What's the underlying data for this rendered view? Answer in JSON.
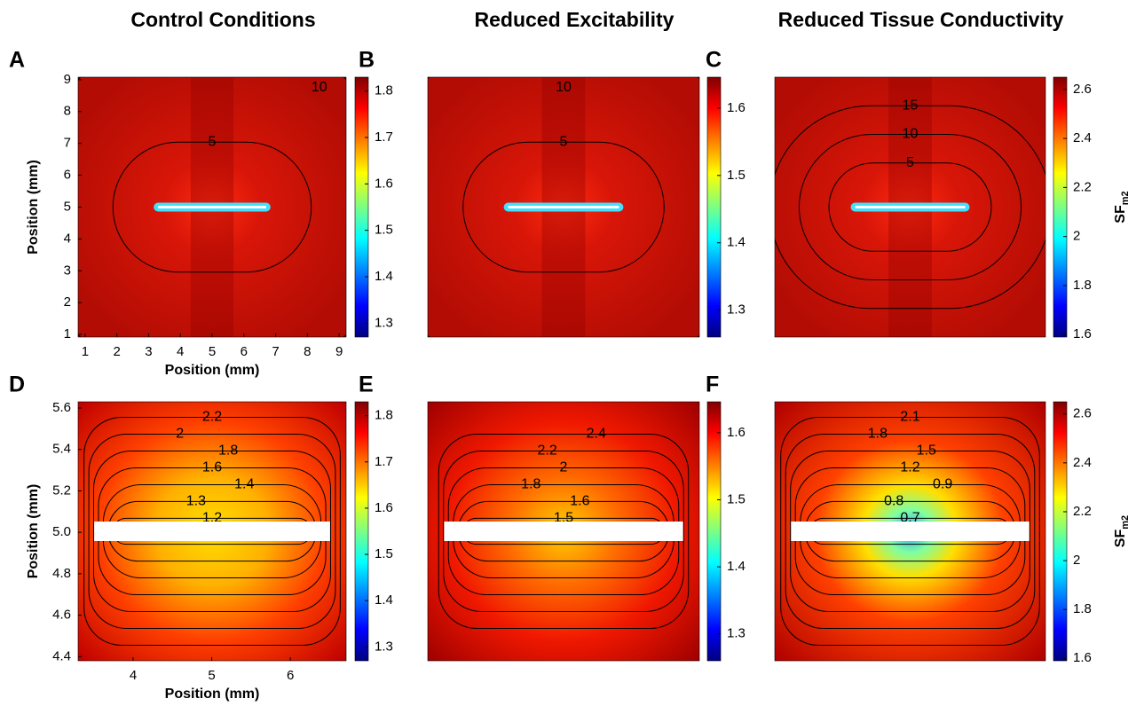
{
  "chart_data": [
    {
      "type": "contour",
      "panel_label": "A",
      "title": "Control Conditions",
      "xlabel": "Position (mm)",
      "ylabel": "Position (mm)",
      "xlim": [
        0.78,
        9.22
      ],
      "ylim": [
        0.92,
        9.08
      ],
      "xticks": [
        1,
        2,
        3,
        4,
        5,
        6,
        7,
        8,
        9
      ],
      "yticks": [
        1,
        2,
        3,
        4,
        5,
        6,
        7,
        8,
        9
      ],
      "contour_labels": [
        10,
        5
      ],
      "colorbar": {
        "lim": [
          1.27,
          1.83
        ],
        "ticks": [
          1.3,
          1.4,
          1.5,
          1.6,
          1.7,
          1.8
        ]
      }
    },
    {
      "type": "contour",
      "panel_label": "B",
      "title": "Reduced Excitability",
      "contour_labels": [
        10,
        5
      ],
      "colorbar": {
        "lim": [
          1.26,
          1.646
        ],
        "ticks": [
          1.3,
          1.4,
          1.5,
          1.6
        ]
      }
    },
    {
      "type": "contour",
      "panel_label": "C",
      "title": "Reduced Tissue Conductivity",
      "contour_labels": [
        15,
        10,
        5
      ],
      "colorbar": {
        "lim": [
          1.59,
          2.65
        ],
        "ticks": [
          1.6,
          1.8,
          2,
          2.2,
          2.4,
          2.6
        ],
        "label": "SF",
        "label_sub": "m2"
      }
    },
    {
      "type": "contour",
      "panel_label": "D",
      "xlabel": "Position (mm)",
      "ylabel": "Position (mm)",
      "xlim": [
        3.3,
        6.71
      ],
      "ylim": [
        4.38,
        5.63
      ],
      "xticks": [
        4,
        5,
        6
      ],
      "yticks": [
        4.4,
        4.6,
        4.8,
        5.0,
        5.2,
        5.4,
        5.6
      ],
      "ytick_labels": [
        "4.4",
        "4.6",
        "4.8",
        "5.0",
        "5.2",
        "5.4",
        "5.6"
      ],
      "contour_labels": [
        2.2,
        2,
        1.8,
        1.6,
        1.4,
        1.3,
        1.2
      ],
      "colorbar": {
        "lim": [
          1.27,
          1.83
        ],
        "ticks": [
          1.3,
          1.4,
          1.5,
          1.6,
          1.7,
          1.8
        ]
      }
    },
    {
      "type": "contour",
      "panel_label": "E",
      "contour_labels": [
        2.4,
        2.2,
        2,
        1.8,
        1.6,
        1.5
      ],
      "colorbar": {
        "lim": [
          1.26,
          1.646
        ],
        "ticks": [
          1.3,
          1.4,
          1.5,
          1.6
        ]
      }
    },
    {
      "type": "contour",
      "panel_label": "F",
      "contour_labels": [
        2.1,
        1.8,
        1.5,
        1.2,
        0.9,
        0.8,
        0.7
      ],
      "colorbar": {
        "lim": [
          1.59,
          2.65
        ],
        "ticks": [
          1.6,
          1.8,
          2,
          2.2,
          2.4,
          2.6
        ],
        "label": "SF",
        "label_sub": "m2"
      }
    }
  ]
}
